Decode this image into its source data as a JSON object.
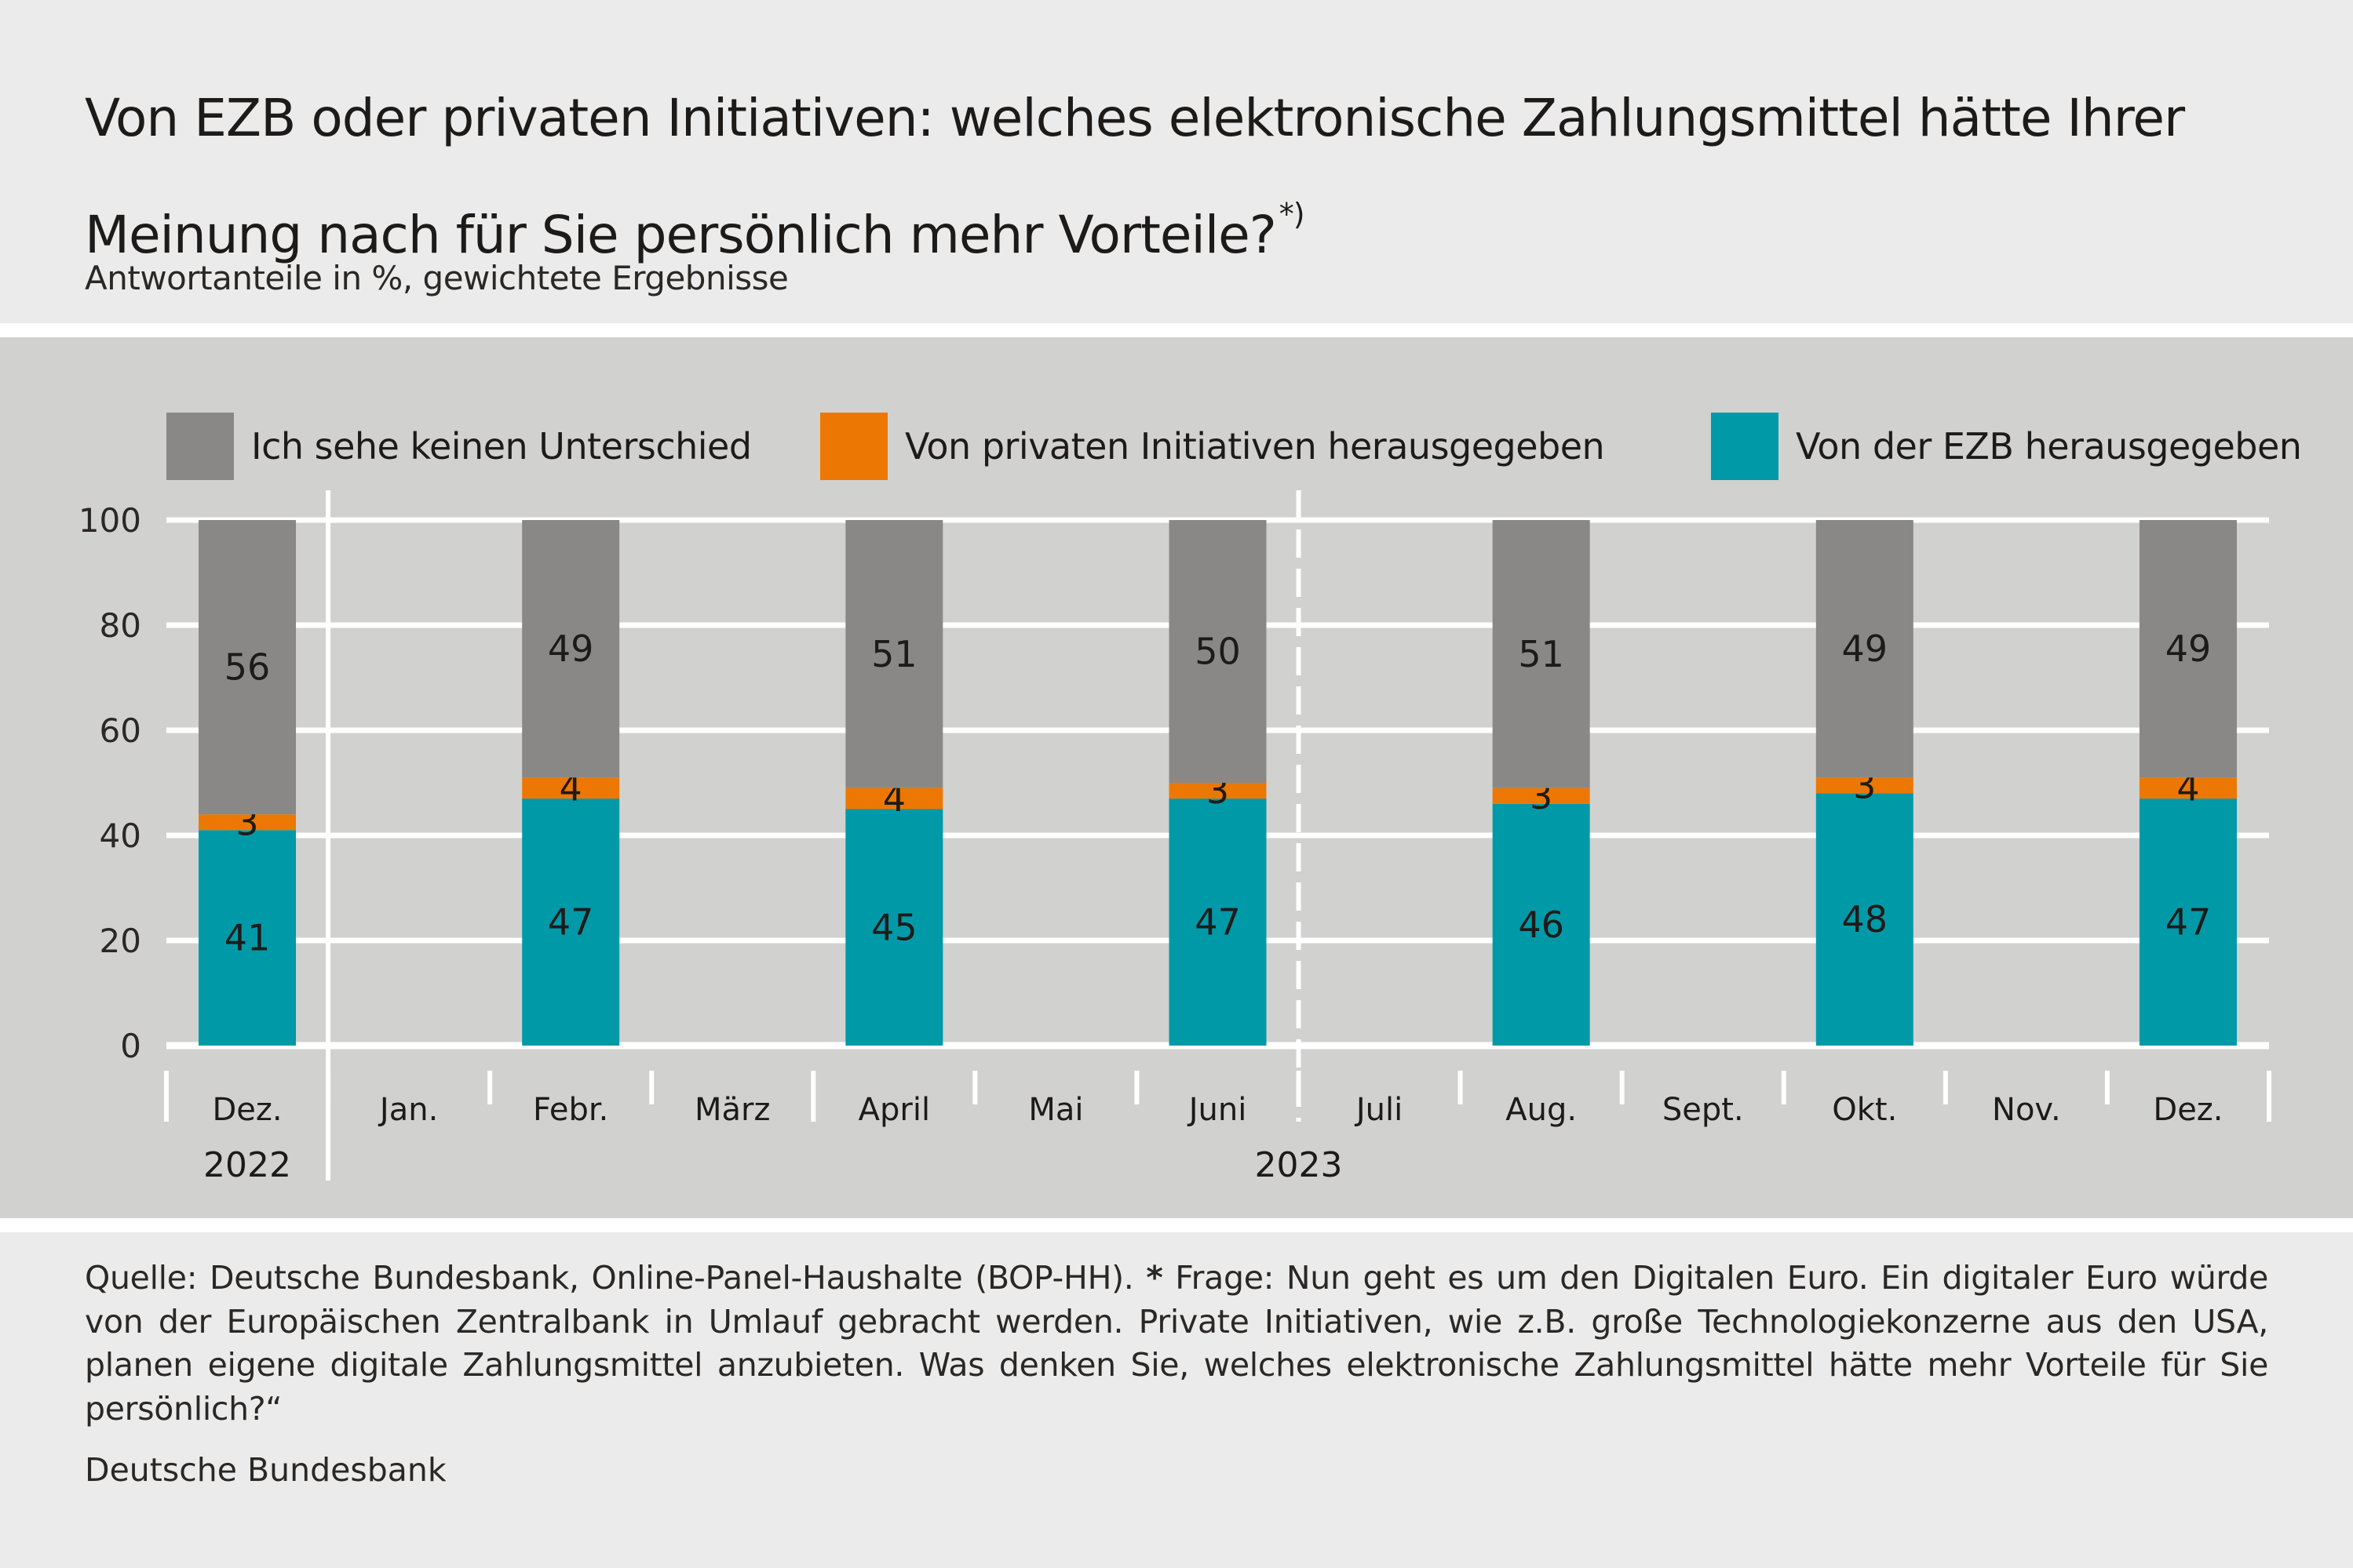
{
  "header": {
    "title": "Von EZB oder privaten Initiativen: welches elektronische Zahlungsmittel hätte Ihrer Meinung nach für Sie persönlich mehr Vorteile?",
    "title_footnote_marker": "*)",
    "subtitle": "Antwortanteile in %, gewichtete Ergebnisse"
  },
  "colors": {
    "no_difference": "#898886",
    "private": "#ed7703",
    "ecb": "#0099a8",
    "panel_bg": "#d1d1cf",
    "page_bg": "#ebebeb",
    "grid": "#ffffff"
  },
  "chart_data": {
    "type": "bar",
    "stacked": true,
    "title": "Von EZB oder privaten Initiativen: welches elektronische Zahlungsmittel hätte Ihrer Meinung nach für Sie persönlich mehr Vorteile?*)",
    "subtitle": "Antwortanteile in %, gewichtete Ergebnisse",
    "xlabel": "",
    "ylabel": "",
    "ylim": [
      0,
      100
    ],
    "yticks": [
      0,
      20,
      40,
      60,
      80,
      100
    ],
    "grid": true,
    "legend_position": "top",
    "months": [
      "Dez.",
      "Jan.",
      "Febr.",
      "März",
      "April",
      "Mai",
      "Juni",
      "Juli",
      "Aug.",
      "Sept.",
      "Okt.",
      "Nov.",
      "Dez."
    ],
    "year_labels": [
      {
        "label": "2022",
        "months": [
          "Dez."
        ]
      },
      {
        "label": "2023",
        "months": [
          "Jan.",
          "Febr.",
          "März",
          "April",
          "Mai",
          "Juni",
          "Juli",
          "Aug.",
          "Sept.",
          "Okt.",
          "Nov.",
          "Dez."
        ]
      }
    ],
    "categories": [
      "Dez. 2022",
      "Febr. 2023",
      "April 2023",
      "Juni 2023",
      "Aug. 2023",
      "Okt. 2023",
      "Dez. 2023"
    ],
    "category_month_index": [
      0,
      2,
      4,
      6,
      8,
      10,
      12
    ],
    "series": [
      {
        "name": "Von der EZB herausgegeben",
        "key": "ecb",
        "values": [
          41,
          47,
          45,
          47,
          46,
          48,
          47
        ]
      },
      {
        "name": "Von privaten Initiativen herausgegeben",
        "key": "private",
        "values": [
          3,
          4,
          4,
          3,
          3,
          3,
          4
        ]
      },
      {
        "name": "Ich sehe keinen Unterschied",
        "key": "no_difference",
        "values": [
          56,
          49,
          51,
          50,
          51,
          49,
          49
        ]
      }
    ],
    "legend": [
      {
        "label": "Ich sehe keinen Unterschied",
        "key": "no_difference"
      },
      {
        "label": "Von privaten Initiativen herausgegeben",
        "key": "private"
      },
      {
        "label": "Von der EZB herausgegeben",
        "key": "ecb"
      }
    ],
    "annotations": [
      "solid separator between 2022 and 2023",
      "dashed separator between Juni and Juli"
    ]
  },
  "footer": {
    "source_prefix": "Quelle: Deutsche Bundesbank, Online-Panel-Haushalte (BOP-HH). ",
    "question_marker": "*",
    "question_text": " Frage: Nun geht es um den Digitalen Euro. Ein digitaler Euro würde von der Europäischen Zentralbank in Umlauf gebracht werden. Private Initiativen, wie z.B. große Technologiekonzerne aus den USA, planen eigene digitale Zahlungsmittel anzubieten. Was denken Sie, welches elektronische Zahlungsmittel hätte mehr Vorteile für Sie persönlich?“",
    "organization": "Deutsche Bundesbank"
  }
}
